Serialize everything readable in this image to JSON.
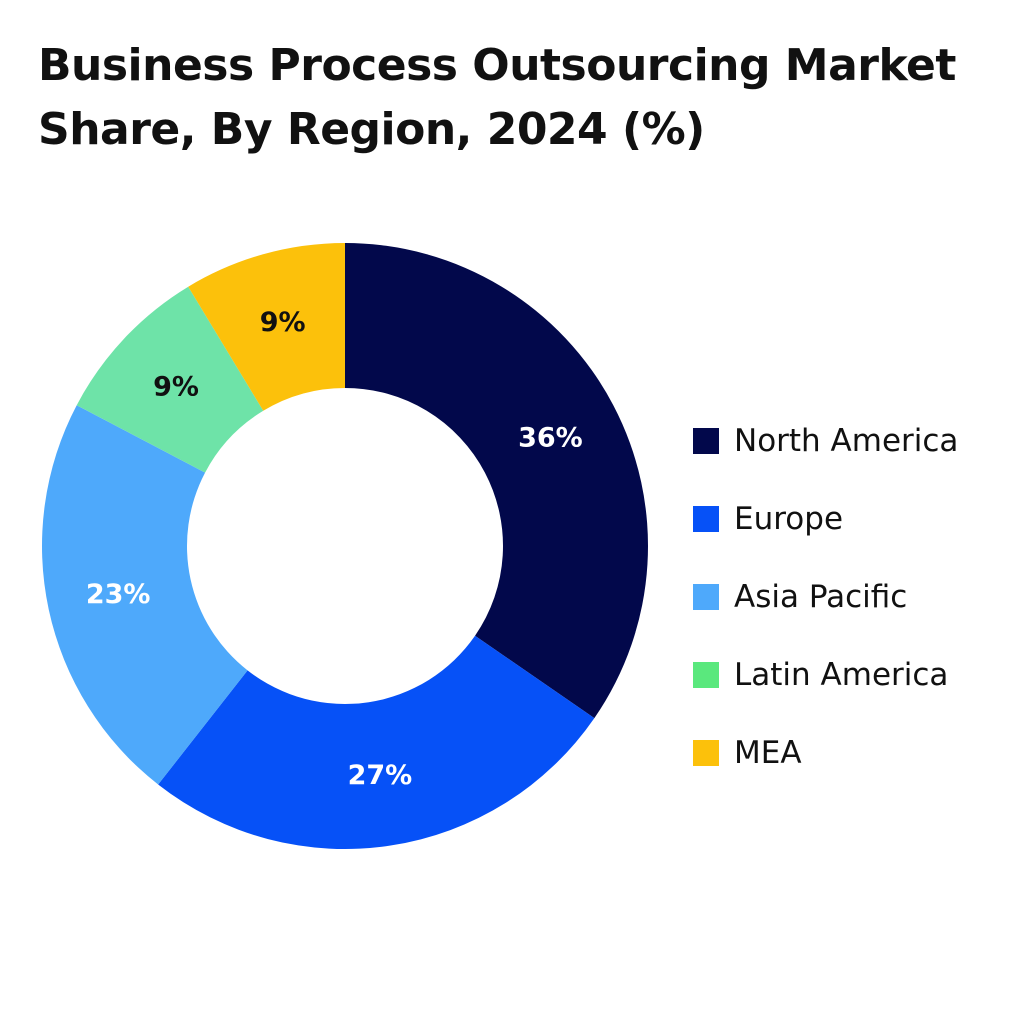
{
  "chart_data": {
    "type": "pie",
    "title": "Business Process Outsourcing Market Share, By Region, 2024 (%)",
    "donut": true,
    "legend_position": "right",
    "categories": [
      "North America",
      "Europe",
      "Asia Pacific",
      "Latin America",
      "MEA"
    ],
    "values": [
      36,
      27,
      23,
      9,
      9
    ],
    "value_labels": [
      "36%",
      "27%",
      "23%",
      "9%",
      "9%"
    ],
    "colors": [
      "#02084b",
      "#0651f7",
      "#4ea9fb",
      "#6ee3a8",
      "#fcc10b"
    ],
    "legend_colors": [
      "#02084b",
      "#0651f7",
      "#4ea9fb",
      "#5ae87d",
      "#fcc10b"
    ],
    "label_colors": [
      "#ffffff",
      "#ffffff",
      "#ffffff",
      "#111111",
      "#111111"
    ]
  }
}
